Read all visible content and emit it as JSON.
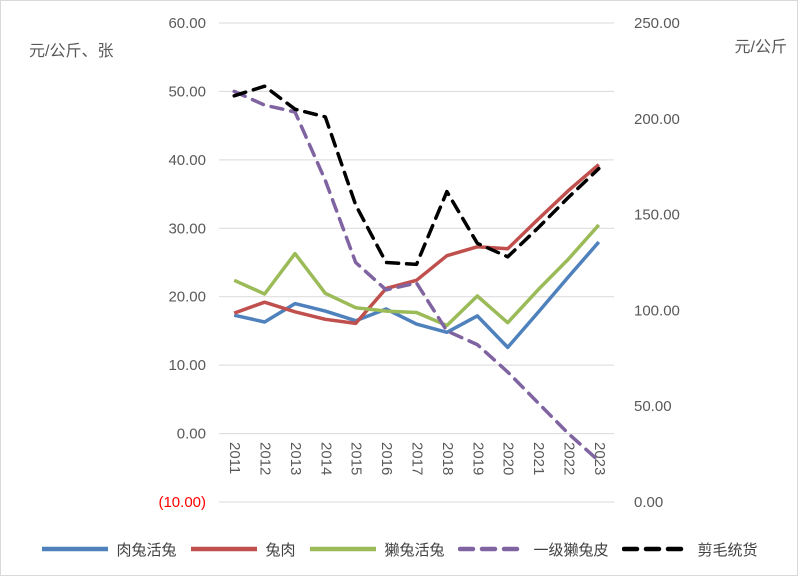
{
  "style": {
    "grid_color": "#d9d9d9",
    "tick_color": "#595959",
    "negative_tick_color": "#ff0000",
    "legend_text_color": "#404040",
    "background": "#ffffff"
  },
  "chart_data": {
    "type": "line",
    "title": "",
    "grid": true,
    "legend_position": "bottom",
    "categories": [
      "2011",
      "2012",
      "2013",
      "2014",
      "2015",
      "2016",
      "2017",
      "2018",
      "2019",
      "2020",
      "2021",
      "2022",
      "2023"
    ],
    "left_axis": {
      "title": "元/公斤、张",
      "min": -10,
      "max": 60,
      "step": 10,
      "tick_labels": [
        "60.00",
        "50.00",
        "40.00",
        "30.00",
        "20.00",
        "10.00",
        "0.00",
        "(10.00)"
      ],
      "negative_labels_red": true
    },
    "right_axis": {
      "title": "元/公斤",
      "min": 0,
      "max": 250,
      "step": 50,
      "tick_labels": [
        "250.00",
        "200.00",
        "150.00",
        "100.00",
        "50.00",
        "0.00"
      ]
    },
    "series": [
      {
        "name": "肉兔活兔",
        "axis": "left",
        "color": "#4F81BD",
        "dash": false,
        "values": [
          17.3,
          16.3,
          19.0,
          17.9,
          16.5,
          18.2,
          16.0,
          14.8,
          17.2,
          12.6,
          17.7,
          22.9,
          28.0
        ]
      },
      {
        "name": "兔肉",
        "axis": "left",
        "color": "#C0504D",
        "dash": false,
        "values": [
          17.6,
          19.2,
          17.8,
          16.7,
          16.1,
          21.2,
          22.4,
          26.0,
          27.3,
          27.0,
          31.3,
          35.5,
          39.3
        ]
      },
      {
        "name": "獭兔活兔",
        "axis": "left",
        "color": "#9BBB59",
        "dash": false,
        "values": [
          22.4,
          20.4,
          26.3,
          20.5,
          18.4,
          17.9,
          17.7,
          15.8,
          20.1,
          16.2,
          21.0,
          25.5,
          30.5
        ]
      },
      {
        "name": "一级獭兔皮",
        "axis": "left",
        "color": "#8064A2",
        "dash": true,
        "values": [
          50.0,
          48.0,
          47.0,
          37.0,
          25.0,
          21.0,
          22.0,
          15.0,
          13.0,
          9.0,
          4.5,
          0.0,
          -4.0
        ]
      },
      {
        "name": "剪毛统货",
        "axis": "right",
        "color": "#000000",
        "dash": true,
        "values": [
          212,
          217,
          205,
          201,
          155,
          125,
          124,
          162,
          135,
          128,
          143,
          159,
          174
        ]
      }
    ]
  }
}
